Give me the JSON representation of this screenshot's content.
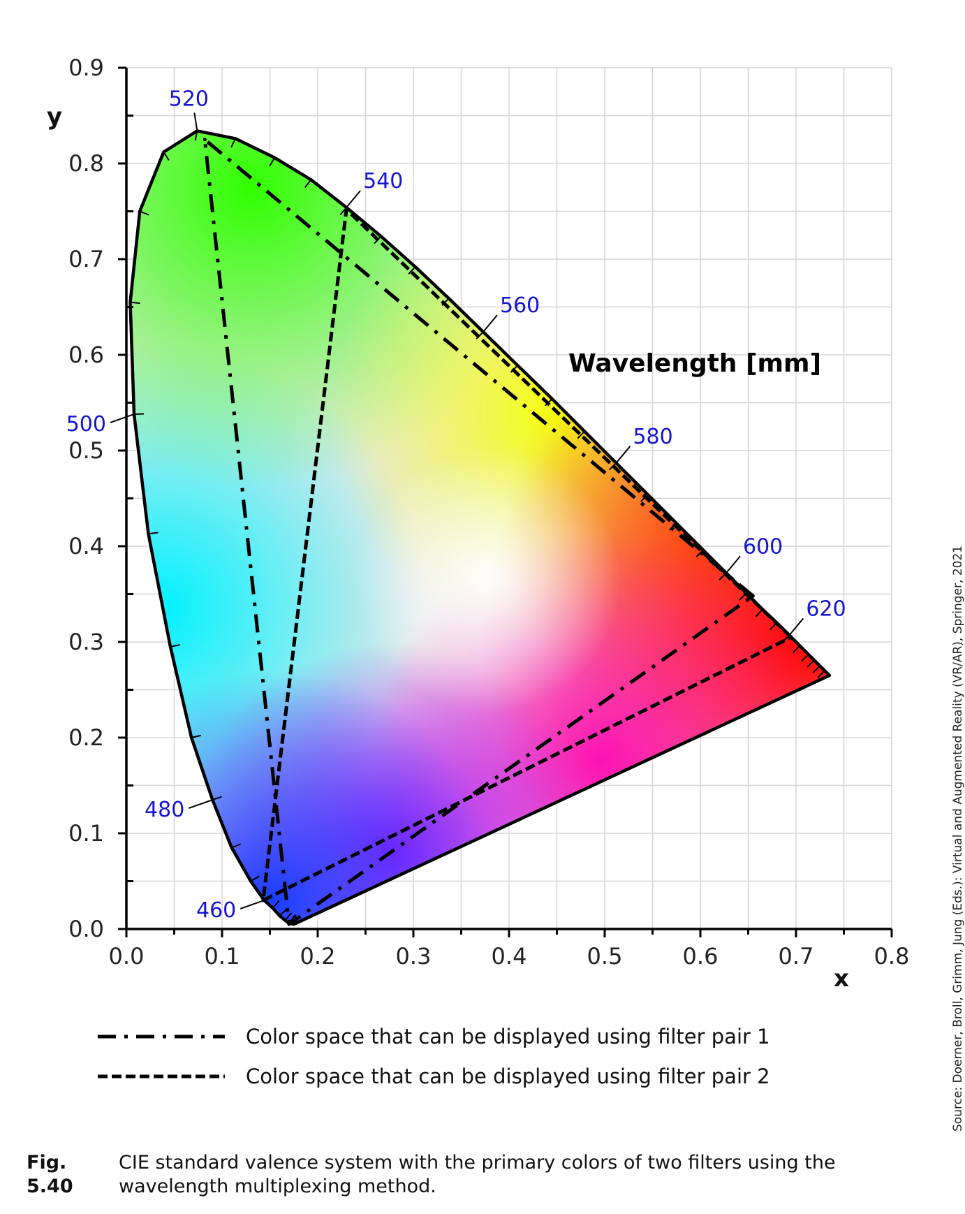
{
  "chart_data": {
    "type": "scatter",
    "title": "",
    "xlabel": "x",
    "ylabel": "y",
    "xlim": [
      0.0,
      0.8
    ],
    "ylim": [
      0.0,
      0.9
    ],
    "x_ticks": [
      "0.0",
      "0.1",
      "0.2",
      "0.3",
      "0.4",
      "0.5",
      "0.6",
      "0.7",
      "0.8"
    ],
    "y_ticks": [
      "0.0",
      "0.1",
      "0.2",
      "0.3",
      "0.4",
      "0.5",
      "0.6",
      "0.7",
      "0.8",
      "0.9"
    ],
    "grid": true,
    "annotation_title": "Wavelength [mm]",
    "spectral_locus": [
      [
        0.175,
        0.005
      ],
      [
        0.17,
        0.006
      ],
      [
        0.166,
        0.009
      ],
      [
        0.16,
        0.014
      ],
      [
        0.153,
        0.022
      ],
      [
        0.144,
        0.03
      ],
      [
        0.13,
        0.05
      ],
      [
        0.11,
        0.085
      ],
      [
        0.09,
        0.135
      ],
      [
        0.068,
        0.2
      ],
      [
        0.046,
        0.295
      ],
      [
        0.023,
        0.413
      ],
      [
        0.008,
        0.538
      ],
      [
        0.004,
        0.655
      ],
      [
        0.014,
        0.75
      ],
      [
        0.039,
        0.812
      ],
      [
        0.074,
        0.834
      ],
      [
        0.114,
        0.826
      ],
      [
        0.155,
        0.806
      ],
      [
        0.193,
        0.783
      ],
      [
        0.23,
        0.754
      ],
      [
        0.266,
        0.724
      ],
      [
        0.302,
        0.692
      ],
      [
        0.337,
        0.659
      ],
      [
        0.373,
        0.624
      ],
      [
        0.409,
        0.589
      ],
      [
        0.445,
        0.554
      ],
      [
        0.479,
        0.52
      ],
      [
        0.512,
        0.487
      ],
      [
        0.545,
        0.454
      ],
      [
        0.575,
        0.424
      ],
      [
        0.603,
        0.396
      ],
      [
        0.627,
        0.372
      ],
      [
        0.648,
        0.351
      ],
      [
        0.665,
        0.334
      ],
      [
        0.68,
        0.32
      ],
      [
        0.693,
        0.307
      ],
      [
        0.704,
        0.296
      ],
      [
        0.713,
        0.287
      ],
      [
        0.719,
        0.281
      ],
      [
        0.725,
        0.275
      ],
      [
        0.73,
        0.27
      ],
      [
        0.735,
        0.265
      ]
    ],
    "wavelength_labels": [
      {
        "nm": "460",
        "x": 0.144,
        "y": 0.03,
        "dir": "left"
      },
      {
        "nm": "480",
        "x": 0.09,
        "y": 0.135,
        "dir": "left"
      },
      {
        "nm": "500",
        "x": 0.008,
        "y": 0.538,
        "dir": "left"
      },
      {
        "nm": "520",
        "x": 0.074,
        "y": 0.834,
        "dir": "up"
      },
      {
        "nm": "540",
        "x": 0.23,
        "y": 0.754,
        "dir": "right"
      },
      {
        "nm": "560",
        "x": 0.373,
        "y": 0.624,
        "dir": "right"
      },
      {
        "nm": "580",
        "x": 0.512,
        "y": 0.487,
        "dir": "right"
      },
      {
        "nm": "600",
        "x": 0.627,
        "y": 0.372,
        "dir": "right"
      },
      {
        "nm": "620",
        "x": 0.693,
        "y": 0.307,
        "dir": "right"
      }
    ],
    "series": [
      {
        "name": "Color space that can be displayed using filter pair 1",
        "style": "dash-dot",
        "vertices": [
          [
            0.655,
            0.348
          ],
          [
            0.082,
            0.825
          ],
          [
            0.17,
            0.005
          ]
        ]
      },
      {
        "name": "Color space that can be displayed using filter pair 2",
        "style": "dashed",
        "vertices": [
          [
            0.695,
            0.305
          ],
          [
            0.23,
            0.752
          ],
          [
            0.143,
            0.03
          ]
        ]
      }
    ]
  },
  "colors": {
    "wavelength_label": "#1414d2",
    "line": "#000000",
    "grid": "#d6d6d6"
  },
  "caption": {
    "number": "Fig. 5.40",
    "text": "CIE standard valence system with the primary colors of two filters using the wavelength multiplexing method."
  },
  "source_note": "Source: Doerner, Broll, Grimm, Jung (Eds.): Virtual and Augmented Reality (VR/AR), Springer, 2021"
}
